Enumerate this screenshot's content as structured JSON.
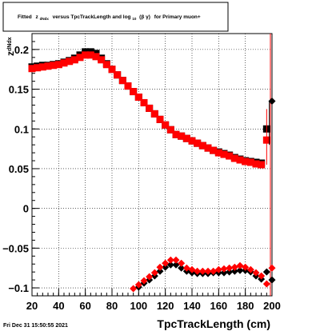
{
  "chart_data": {
    "type": "scatter",
    "title_parts": {
      "prefix": "Fitted",
      "z": "z",
      "z_sub": "dNdx",
      "mid": "versus TpcTrackLength and log",
      "log_sub": "10",
      "beta_gamma": "(β γ)",
      "suffix": "for Primary muon+"
    },
    "xlabel": "TpcTrackLength (cm)",
    "ylabel_main": "z",
    "ylabel_sub": "dNdx",
    "footer": "Fri Dec 31 15:50:55 2021",
    "xlim": [
      20,
      200
    ],
    "ylim": [
      -0.11,
      0.22
    ],
    "x_ticks": [
      20,
      40,
      60,
      80,
      100,
      120,
      140,
      160,
      180,
      200
    ],
    "x_tick_labels": [
      "20",
      "40",
      "60",
      "80",
      "100",
      "120",
      "140",
      "160",
      "180",
      "200"
    ],
    "y_ticks": [
      -0.1,
      -0.05,
      0,
      0.05,
      0.1,
      0.15,
      0.2
    ],
    "y_tick_labels": [
      "−0.1",
      "−0.05",
      "0",
      "0.05",
      "0.1",
      "0.15",
      "0.2"
    ],
    "grid": true,
    "series": [
      {
        "marker": "square",
        "color": "#000000",
        "points": [
          [
            20,
            0.178
          ],
          [
            24,
            0.179
          ],
          [
            28,
            0.18
          ],
          [
            32,
            0.18
          ],
          [
            36,
            0.181
          ],
          [
            40,
            0.182
          ],
          [
            44,
            0.184
          ],
          [
            48,
            0.186
          ],
          [
            52,
            0.189
          ],
          [
            56,
            0.193
          ],
          [
            60,
            0.197
          ],
          [
            64,
            0.197
          ],
          [
            68,
            0.195
          ],
          [
            72,
            0.189
          ],
          [
            76,
            0.182
          ],
          [
            80,
            0.175
          ],
          [
            84,
            0.168
          ],
          [
            88,
            0.161
          ],
          [
            92,
            0.154
          ],
          [
            96,
            0.147
          ],
          [
            100,
            0.14
          ],
          [
            104,
            0.133
          ],
          [
            108,
            0.126
          ],
          [
            112,
            0.119
          ],
          [
            116,
            0.112
          ],
          [
            120,
            0.105
          ],
          [
            124,
            0.099
          ],
          [
            128,
            0.093
          ],
          [
            132,
            0.091
          ],
          [
            136,
            0.088
          ],
          [
            140,
            0.085
          ],
          [
            144,
            0.082
          ],
          [
            148,
            0.079
          ],
          [
            152,
            0.076
          ],
          [
            156,
            0.073
          ],
          [
            160,
            0.071
          ],
          [
            164,
            0.069
          ],
          [
            168,
            0.067
          ],
          [
            172,
            0.064
          ],
          [
            176,
            0.062
          ],
          [
            180,
            0.06
          ],
          [
            184,
            0.059
          ],
          [
            188,
            0.058
          ],
          [
            192,
            0.057
          ],
          [
            196,
            0.1
          ]
        ]
      },
      {
        "marker": "square",
        "color": "#ff0000",
        "points": [
          [
            20,
            0.176
          ],
          [
            24,
            0.177
          ],
          [
            28,
            0.178
          ],
          [
            32,
            0.179
          ],
          [
            36,
            0.18
          ],
          [
            40,
            0.181
          ],
          [
            44,
            0.183
          ],
          [
            48,
            0.185
          ],
          [
            52,
            0.187
          ],
          [
            56,
            0.19
          ],
          [
            60,
            0.193
          ],
          [
            64,
            0.193
          ],
          [
            68,
            0.191
          ],
          [
            72,
            0.187
          ],
          [
            76,
            0.181
          ],
          [
            80,
            0.175
          ],
          [
            84,
            0.168
          ],
          [
            88,
            0.161
          ],
          [
            92,
            0.154
          ],
          [
            96,
            0.147
          ],
          [
            100,
            0.14
          ],
          [
            104,
            0.133
          ],
          [
            108,
            0.126
          ],
          [
            112,
            0.119
          ],
          [
            116,
            0.112
          ],
          [
            120,
            0.105
          ],
          [
            124,
            0.099
          ],
          [
            128,
            0.093
          ],
          [
            132,
            0.091
          ],
          [
            136,
            0.088
          ],
          [
            140,
            0.085
          ],
          [
            144,
            0.082
          ],
          [
            148,
            0.079
          ],
          [
            152,
            0.076
          ],
          [
            156,
            0.073
          ],
          [
            160,
            0.07
          ],
          [
            164,
            0.068
          ],
          [
            168,
            0.066
          ],
          [
            172,
            0.063
          ],
          [
            176,
            0.061
          ],
          [
            180,
            0.059
          ],
          [
            184,
            0.058
          ],
          [
            188,
            0.056
          ],
          [
            192,
            0.055
          ],
          [
            196,
            0.086
          ]
        ]
      },
      {
        "marker": "diamond",
        "color": "#000000",
        "points": [
          [
            100,
            -0.099
          ],
          [
            104,
            -0.094
          ],
          [
            108,
            -0.09
          ],
          [
            112,
            -0.085
          ],
          [
            116,
            -0.079
          ],
          [
            120,
            -0.074
          ],
          [
            124,
            -0.071
          ],
          [
            128,
            -0.071
          ],
          [
            132,
            -0.075
          ],
          [
            136,
            -0.079
          ],
          [
            140,
            -0.081
          ],
          [
            144,
            -0.082
          ],
          [
            148,
            -0.082
          ],
          [
            152,
            -0.082
          ],
          [
            156,
            -0.081
          ],
          [
            160,
            -0.081
          ],
          [
            164,
            -0.081
          ],
          [
            168,
            -0.08
          ],
          [
            172,
            -0.079
          ],
          [
            176,
            -0.078
          ],
          [
            180,
            -0.078
          ],
          [
            184,
            -0.08
          ],
          [
            188,
            -0.085
          ],
          [
            192,
            -0.089
          ],
          [
            196,
            -0.08
          ],
          [
            200,
            -0.09
          ],
          [
            200,
            0.135
          ]
        ]
      },
      {
        "marker": "diamond",
        "color": "#ff0000",
        "points": [
          [
            96,
            -0.101
          ],
          [
            100,
            -0.096
          ],
          [
            104,
            -0.091
          ],
          [
            108,
            -0.086
          ],
          [
            112,
            -0.081
          ],
          [
            116,
            -0.074
          ],
          [
            120,
            -0.069
          ],
          [
            124,
            -0.065
          ],
          [
            128,
            -0.065
          ],
          [
            132,
            -0.069
          ],
          [
            136,
            -0.075
          ],
          [
            140,
            -0.077
          ],
          [
            144,
            -0.079
          ],
          [
            148,
            -0.079
          ],
          [
            152,
            -0.079
          ],
          [
            156,
            -0.079
          ],
          [
            160,
            -0.077
          ],
          [
            164,
            -0.076
          ],
          [
            168,
            -0.075
          ],
          [
            172,
            -0.074
          ],
          [
            176,
            -0.072
          ],
          [
            180,
            -0.074
          ],
          [
            184,
            -0.077
          ],
          [
            188,
            -0.081
          ],
          [
            192,
            -0.085
          ],
          [
            196,
            -0.095
          ],
          [
            200,
            -0.075
          ]
        ]
      }
    ]
  }
}
